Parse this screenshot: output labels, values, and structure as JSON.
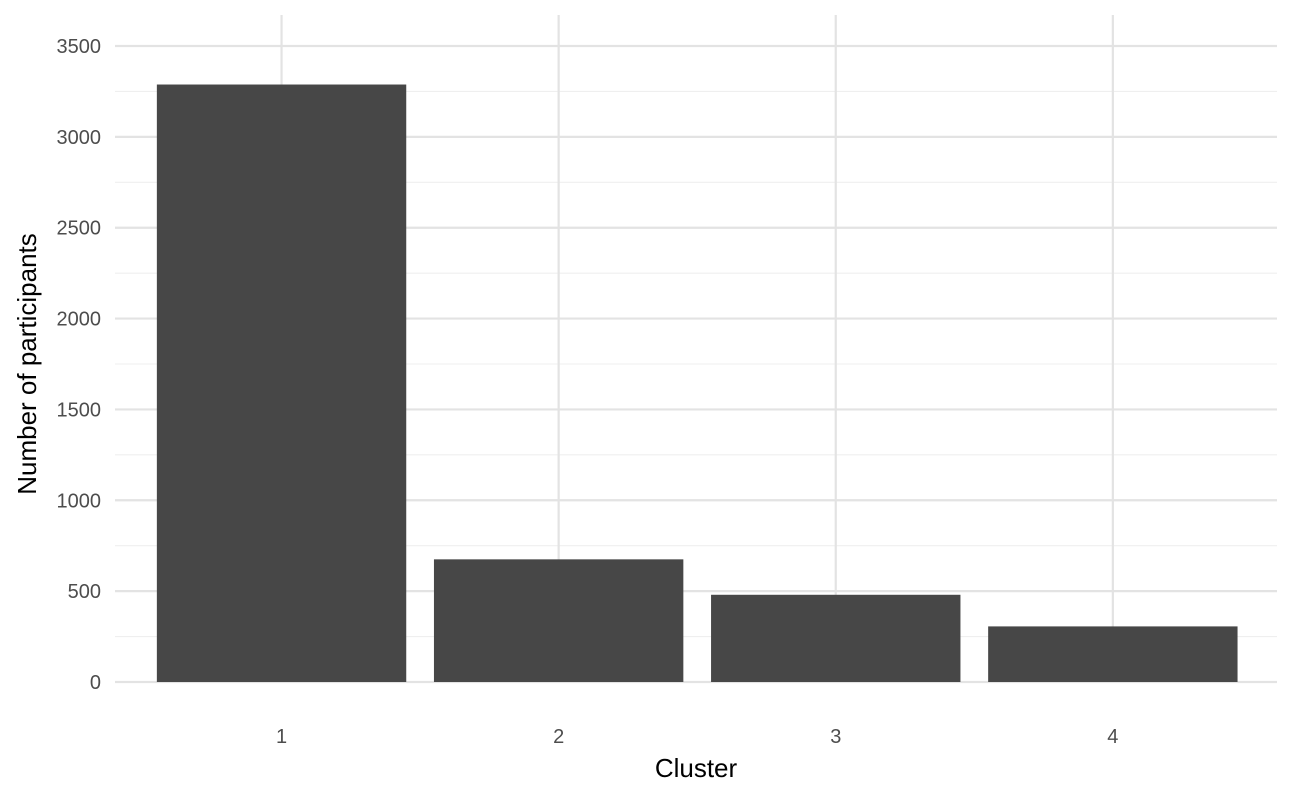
{
  "chart_data": {
    "type": "bar",
    "categories": [
      "1",
      "2",
      "3",
      "4"
    ],
    "values": [
      3288,
      675,
      480,
      306
    ],
    "title": "",
    "xlabel": "Cluster",
    "ylabel": "Number of participants",
    "ylim": [
      0,
      3500
    ],
    "yticks": [
      "0",
      "500",
      "1000",
      "1500",
      "2000",
      "2500",
      "3000",
      "3500"
    ],
    "ytick_values": [
      0,
      500,
      1000,
      1500,
      2000,
      2500,
      3000,
      3500
    ],
    "grid": true,
    "legend": "none",
    "bar_color": "#474747"
  }
}
